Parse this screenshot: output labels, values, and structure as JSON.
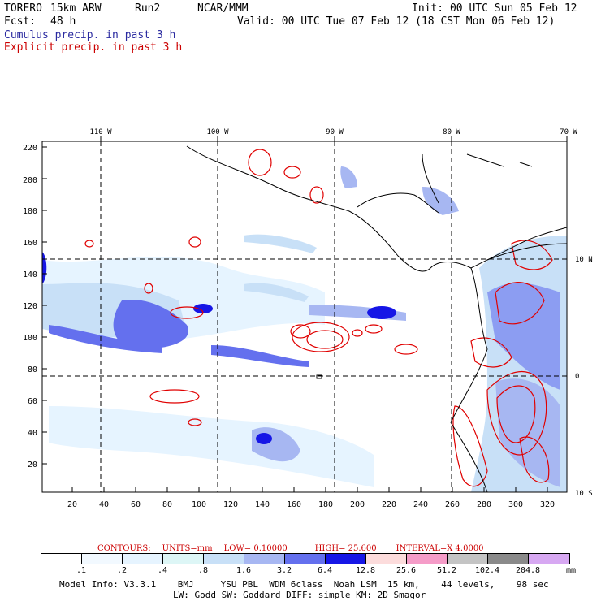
{
  "header": {
    "model": "TORERO",
    "resolution": "15km ARW",
    "run": "Run2",
    "org": "NCAR/MMM",
    "init": "Init: 00 UTC Sun 05 Feb 12",
    "fcst_label": "Fcst:",
    "fcst_value": "48 h",
    "valid": "Valid: 00 UTC Tue 07 Feb 12 (18 CST Mon 06 Feb 12)",
    "legend_cumulus": "Cumulus precip. in past 3 h",
    "legend_explicit": "Explicit precip. in past 3 h"
  },
  "axes": {
    "top_lon": [
      "110 W",
      "100 W",
      "90 W",
      "80 W",
      "70 W"
    ],
    "right_lat": [
      "10 N",
      "0",
      "10 S"
    ],
    "y_ticks": [
      "220",
      "200",
      "180",
      "160",
      "140",
      "120",
      "100",
      "80",
      "60",
      "40",
      "20"
    ],
    "x_ticks": [
      "20",
      "40",
      "60",
      "80",
      "100",
      "120",
      "140",
      "160",
      "180",
      "200",
      "220",
      "240",
      "260",
      "280",
      "300",
      "320"
    ]
  },
  "contours": {
    "label": "CONTOURS:",
    "units": "UNITS=mm",
    "low": "LOW= 0.10000",
    "high": "HIGH= 25.600",
    "interval": "INTERVAL=X 4.0000"
  },
  "colorbar": {
    "colors": [
      "#ffffff",
      "#f2f9ff",
      "#e6f4ff",
      "#ddf6f6",
      "#c8e0f7",
      "#a7b7f2",
      "#6470ee",
      "#1616e6",
      "#fcdcdc",
      "#f59cc8",
      "#c4c4c4",
      "#8a8a8a",
      "#d7a8f2"
    ],
    "labels": [
      ".1",
      ".2",
      ".4",
      ".8",
      "1.6",
      "3.2",
      "6.4",
      "12.8",
      "25.6",
      "51.2",
      "102.4",
      "204.8"
    ],
    "unit": "mm"
  },
  "footer": {
    "line1": "Model Info: V3.3.1    BMJ     YSU PBL  WDM 6class  Noah LSM  15 km,    44 levels,    98 sec",
    "line2": "LW: Godd SW: Goddard DIFF: simple KM: 2D Smagor"
  }
}
